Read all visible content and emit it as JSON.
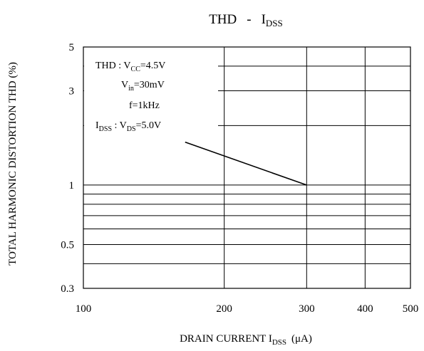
{
  "chart_data": {
    "type": "line",
    "title": {
      "main": "THD",
      "sep": "-",
      "sym": "I",
      "sub": "DSS"
    },
    "xlabel": {
      "pre": "DRAIN CURRENT I",
      "sub": "DSS",
      "post": "(μA)"
    },
    "ylabel": "TOTAL HARMONIC DISTORTION THD  (%)",
    "x_scale": "log",
    "y_scale": "log",
    "xlim": [
      100,
      500
    ],
    "ylim": [
      0.3,
      5
    ],
    "x_ticks": [
      {
        "value": 100,
        "label": "100"
      },
      {
        "value": 200,
        "label": "200"
      },
      {
        "value": 300,
        "label": "300"
      },
      {
        "value": 400,
        "label": "400"
      },
      {
        "value": 500,
        "label": "500"
      }
    ],
    "y_ticks": [
      {
        "value": 5,
        "label": "5"
      },
      {
        "value": 3,
        "label": "3"
      },
      {
        "value": 1,
        "label": "1"
      },
      {
        "value": 0.5,
        "label": "0.5"
      },
      {
        "value": 0.3,
        "label": "0.3"
      }
    ],
    "series": [
      {
        "x": [
          165,
          300
        ],
        "y": [
          1.65,
          1.0
        ]
      }
    ],
    "conditions": [
      {
        "pre": "THD : V",
        "sub": "CC",
        "post": "=4.5V"
      },
      {
        "pre": "V",
        "sub": "in",
        "post": "=30mV"
      },
      {
        "pre": "f=1kHz",
        "sub": "",
        "post": ""
      },
      {
        "pre": "I",
        "sub": "DSS",
        "post": " : V",
        "sub2": "DS",
        "post2": "=5.0V"
      }
    ],
    "grid": true
  }
}
